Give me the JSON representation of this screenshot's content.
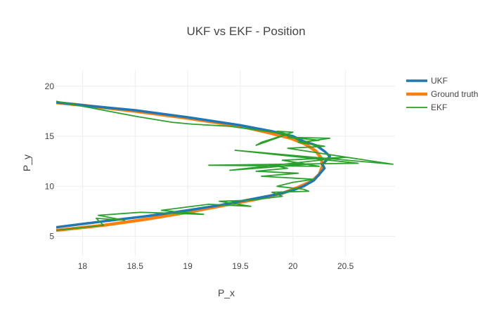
{
  "chart_data": {
    "type": "line",
    "title": "UKF vs EKF - Position",
    "xlabel": "P_x",
    "ylabel": "P_y",
    "xlim": [
      17.75,
      20.97
    ],
    "ylim": [
      3.0,
      21.6
    ],
    "xticks": [
      18,
      18.5,
      19,
      19.5,
      20,
      20.5
    ],
    "yticks": [
      5,
      10,
      15,
      20
    ],
    "grid": true,
    "legend_position": "top-right",
    "series": [
      {
        "name": "UKF",
        "color": "#1f77b4",
        "width": 3.5,
        "x": [
          17.75,
          18.2,
          18.6,
          19.0,
          19.3,
          19.6,
          19.85,
          20.0,
          20.1,
          20.2,
          20.25,
          20.3,
          20.28,
          20.32,
          20.35,
          20.3,
          20.22,
          20.1,
          20.0,
          19.8,
          19.5,
          19.0,
          18.5,
          18.0,
          17.75
        ],
        "y": [
          5.9,
          6.5,
          7.0,
          7.6,
          8.1,
          8.7,
          9.2,
          9.6,
          10.0,
          10.6,
          11.2,
          11.8,
          12.2,
          12.6,
          13.0,
          13.5,
          14.1,
          14.5,
          15.0,
          15.5,
          16.1,
          16.9,
          17.6,
          18.1,
          18.4
        ]
      },
      {
        "name": "Ground truth",
        "color": "#ff7f0e",
        "width": 4.5,
        "x": [
          17.75,
          18.2,
          18.6,
          19.0,
          19.35,
          19.65,
          19.9,
          20.05,
          20.18,
          20.25,
          20.28,
          20.27,
          20.22,
          20.12,
          19.98,
          19.75,
          19.5,
          19.0,
          18.5,
          18.0,
          17.75
        ],
        "y": [
          5.6,
          6.1,
          6.7,
          7.4,
          8.1,
          8.7,
          9.3,
          9.9,
          10.5,
          11.2,
          12.0,
          12.8,
          13.5,
          14.2,
          14.8,
          15.4,
          16.0,
          16.8,
          17.5,
          18.1,
          18.35
        ]
      },
      {
        "name": "EKF",
        "color": "#2ca02c",
        "width": 1.8,
        "x": [
          17.75,
          18.2,
          18.13,
          18.4,
          18.15,
          18.55,
          19.15,
          18.75,
          19.2,
          19.6,
          19.3,
          19.6,
          19.9,
          19.8,
          20.15,
          20.1,
          19.85,
          20.0,
          20.2,
          19.7,
          20.05,
          19.65,
          19.95,
          19.85,
          20.15,
          19.4,
          20.5,
          19.9,
          20.25,
          19.2,
          20.62,
          19.45,
          20.95,
          19.95,
          20.3,
          20.05,
          20.25,
          19.95,
          20.35,
          20.15,
          20.1,
          19.95,
          19.85,
          20.0,
          19.7,
          19.65,
          19.95,
          19.4,
          19.05,
          18.85,
          18.5,
          18.2,
          17.75
        ],
        "y": [
          5.6,
          6.1,
          6.8,
          6.6,
          7.1,
          7.4,
          7.2,
          7.6,
          8.2,
          8.0,
          8.5,
          8.6,
          9.0,
          9.4,
          9.5,
          9.7,
          10.0,
          10.4,
          10.7,
          11.0,
          11.3,
          11.5,
          11.8,
          12.0,
          12.2,
          11.6,
          12.9,
          12.6,
          12.0,
          12.1,
          12.3,
          13.6,
          12.2,
          13.8,
          14.0,
          14.4,
          14.6,
          14.9,
          14.8,
          14.5,
          14.3,
          15.2,
          15.5,
          15.4,
          14.4,
          14.1,
          15.2,
          16.0,
          16.2,
          16.4,
          17.0,
          17.6,
          18.5
        ]
      }
    ]
  }
}
